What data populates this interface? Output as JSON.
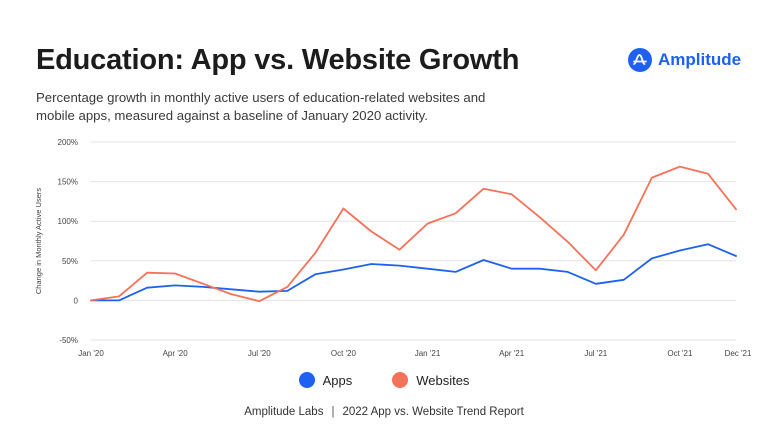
{
  "title": "Education: App vs. Website Growth",
  "subtitle": "Percentage growth in monthly active users of education-related websites and mobile apps, measured against a baseline of January 2020 activity.",
  "brand": {
    "name": "Amplitude",
    "color": "#1e61f0",
    "icon": "amplitude-logo-icon"
  },
  "footer": {
    "left": "Amplitude Labs",
    "separator": "|",
    "right": "2022 App vs. Website Trend Report"
  },
  "chart_data": {
    "type": "line",
    "ylabel": "Change in Monthly Active Users",
    "xlabel": "",
    "ylim": [
      -50,
      200
    ],
    "yticks": [
      -50,
      0,
      50,
      100,
      150,
      200
    ],
    "ytick_labels": [
      "-50%",
      "0",
      "50%",
      "100%",
      "150%",
      "200%"
    ],
    "x": [
      "Jan '20",
      "Feb '20",
      "Mar '20",
      "Apr '20",
      "May '20",
      "Jun '20",
      "Jul '20",
      "Aug '20",
      "Sep '20",
      "Oct '20",
      "Nov '20",
      "Dec '20",
      "Jan '21",
      "Feb '21",
      "Mar '21",
      "Apr '21",
      "May '21",
      "Jun '21",
      "Jul '21",
      "Aug '21",
      "Sep '21",
      "Oct '21",
      "Nov '21",
      "Dec '21"
    ],
    "xticks": [
      "Jan '20",
      "Apr '20",
      "Jul '20",
      "Oct '20",
      "Jan '21",
      "Apr '21",
      "Jul '21",
      "Oct '21",
      "Dec '21"
    ],
    "grid": "horizontal",
    "legend": "bottom-center",
    "series": [
      {
        "name": "Apps",
        "color": "#1e61f0",
        "values": [
          0,
          0,
          16,
          19,
          17,
          14,
          11,
          12,
          33,
          39,
          46,
          44,
          40,
          36,
          51,
          40,
          40,
          36,
          21,
          26,
          53,
          63,
          71,
          56
        ]
      },
      {
        "name": "Websites",
        "color": "#f4725a",
        "values": [
          0,
          5,
          35,
          34,
          21,
          8,
          -1,
          17,
          60,
          116,
          87,
          64,
          97,
          110,
          141,
          134,
          105,
          74,
          38,
          83,
          155,
          169,
          160,
          115
        ]
      }
    ]
  }
}
